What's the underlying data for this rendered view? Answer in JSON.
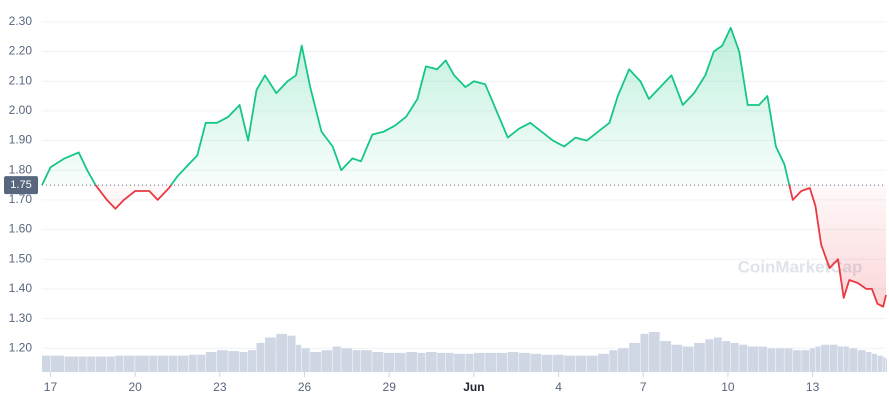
{
  "chart_data": {
    "type": "line",
    "x": [
      16.7,
      17.0,
      17.5,
      18.0,
      18.3,
      18.6,
      19.0,
      19.3,
      19.6,
      20.0,
      20.5,
      20.8,
      21.2,
      21.5,
      21.9,
      22.2,
      22.5,
      22.9,
      23.3,
      23.7,
      24.0,
      24.3,
      24.6,
      25.0,
      25.4,
      25.7,
      25.9,
      26.2,
      26.6,
      27.0,
      27.3,
      27.7,
      28.0,
      28.4,
      28.8,
      29.2,
      29.6,
      30.0,
      30.3,
      30.7,
      31.0,
      31.3,
      31.7,
      32.0,
      32.4,
      32.8,
      33.2,
      33.6,
      34.0,
      34.4,
      34.8,
      35.2,
      35.6,
      36.0,
      36.4,
      36.8,
      37.1,
      37.5,
      37.9,
      38.2,
      38.6,
      39.0,
      39.4,
      39.8,
      40.2,
      40.5,
      40.8,
      41.1,
      41.4,
      41.7,
      42.1,
      42.4,
      42.7,
      43.0,
      43.3,
      43.6,
      43.9,
      44.1,
      44.3,
      44.6,
      44.9,
      45.1,
      45.3,
      45.6,
      45.9,
      46.1,
      46.3,
      46.5,
      46.6
    ],
    "values": [
      1.75,
      1.81,
      1.84,
      1.86,
      1.8,
      1.75,
      1.7,
      1.67,
      1.7,
      1.73,
      1.73,
      1.7,
      1.74,
      1.78,
      1.82,
      1.85,
      1.96,
      1.96,
      1.98,
      2.02,
      1.9,
      2.07,
      2.12,
      2.06,
      2.1,
      2.12,
      2.22,
      2.08,
      1.93,
      1.88,
      1.8,
      1.84,
      1.83,
      1.92,
      1.93,
      1.95,
      1.98,
      2.04,
      2.15,
      2.14,
      2.17,
      2.12,
      2.08,
      2.1,
      2.09,
      2.0,
      1.91,
      1.94,
      1.96,
      1.93,
      1.9,
      1.88,
      1.91,
      1.9,
      1.93,
      1.96,
      2.05,
      2.14,
      2.1,
      2.04,
      2.08,
      2.12,
      2.02,
      2.06,
      2.12,
      2.2,
      2.22,
      2.28,
      2.2,
      2.02,
      2.02,
      2.05,
      1.88,
      1.82,
      1.7,
      1.73,
      1.74,
      1.68,
      1.55,
      1.47,
      1.5,
      1.37,
      1.43,
      1.42,
      1.4,
      1.4,
      1.35,
      1.34,
      1.38
    ],
    "volume": [
      18,
      18,
      17,
      17,
      17,
      17,
      17,
      18,
      18,
      18,
      18,
      18,
      18,
      18,
      19,
      19,
      22,
      24,
      23,
      22,
      24,
      32,
      38,
      42,
      40,
      30,
      26,
      22,
      24,
      28,
      26,
      24,
      24,
      22,
      21,
      21,
      22,
      21,
      22,
      21,
      21,
      20,
      20,
      21,
      21,
      21,
      22,
      21,
      20,
      19,
      19,
      18,
      18,
      18,
      20,
      24,
      26,
      32,
      42,
      44,
      34,
      30,
      28,
      32,
      36,
      38,
      34,
      32,
      30,
      28,
      28,
      26,
      26,
      26,
      24,
      24,
      26,
      28,
      30,
      30,
      28,
      28,
      26,
      24,
      22,
      20,
      18,
      16,
      15
    ],
    "up_color": "#16c784",
    "down_color": "#ea3943",
    "volume_color": "#cfd6e4",
    "baseline": {
      "value": 1.75,
      "label": "1.75"
    },
    "xlim": [
      16.7,
      46.6
    ],
    "xticks": [
      17,
      20,
      23,
      26,
      29,
      {
        "value": 32,
        "label": "Jun"
      },
      {
        "value": 35,
        "label": "4"
      },
      {
        "value": 38,
        "label": "7"
      },
      {
        "value": 41,
        "label": "10"
      },
      {
        "value": 44,
        "label": "13"
      }
    ],
    "ylim": [
      1.12,
      2.34
    ],
    "yticks": [
      {
        "value": 1.2,
        "label": "1.20"
      },
      {
        "value": 1.3,
        "label": "1.30"
      },
      {
        "value": 1.4,
        "label": "1.40"
      },
      {
        "value": 1.5,
        "label": "1.50"
      },
      {
        "value": 1.6,
        "label": "1.60"
      },
      {
        "value": 1.7,
        "label": "1.70"
      },
      {
        "value": 1.8,
        "label": "1.80"
      },
      {
        "value": 1.9,
        "label": "1.90"
      },
      {
        "value": 2.0,
        "label": "2.00"
      },
      {
        "value": 2.1,
        "label": "2.10"
      },
      {
        "value": 2.2,
        "label": "2.20"
      },
      {
        "value": 2.3,
        "label": "2.30"
      }
    ],
    "grid": true,
    "watermark": "CoinMarketCap"
  }
}
